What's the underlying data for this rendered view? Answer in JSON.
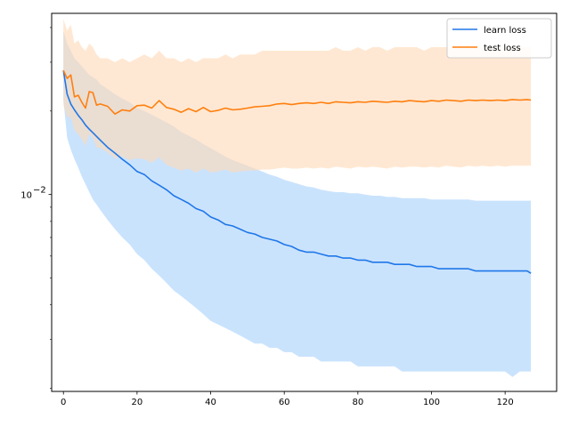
{
  "chart_data": {
    "type": "line",
    "title": "",
    "xlabel": "",
    "ylabel": "",
    "y_scale": "log",
    "xlim": [
      -3.2,
      134
    ],
    "ylim": [
      0.00195,
      0.045
    ],
    "grid": false,
    "legend_position": "top-right",
    "x_ticks": [
      0,
      20,
      40,
      60,
      80,
      100,
      120
    ],
    "y_major_ticks": [
      {
        "value": 0.01,
        "base": "10",
        "exp": "−2"
      }
    ],
    "y_minor_ticks": [
      0.002,
      0.003,
      0.004,
      0.005,
      0.006,
      0.007,
      0.008,
      0.009,
      0.02,
      0.03,
      0.04
    ],
    "series": [
      {
        "name": "learn loss",
        "color": "#1f77e8",
        "band_color": "#a9d2fb",
        "x": [
          0,
          1,
          2,
          3,
          4,
          5,
          6,
          7,
          8,
          9,
          10,
          12,
          14,
          16,
          18,
          20,
          22,
          24,
          26,
          28,
          30,
          32,
          34,
          36,
          38,
          40,
          42,
          44,
          46,
          48,
          50,
          52,
          54,
          56,
          58,
          60,
          62,
          64,
          66,
          68,
          70,
          72,
          74,
          76,
          78,
          80,
          82,
          84,
          86,
          88,
          90,
          92,
          94,
          96,
          98,
          100,
          102,
          104,
          106,
          108,
          110,
          112,
          114,
          116,
          118,
          120,
          122,
          124,
          126,
          127
        ],
        "mean": [
          0.028,
          0.023,
          0.0212,
          0.0202,
          0.0193,
          0.0186,
          0.0178,
          0.0172,
          0.0167,
          0.0162,
          0.0157,
          0.0148,
          0.0141,
          0.0134,
          0.0128,
          0.0121,
          0.0118,
          0.0112,
          0.0108,
          0.0104,
          0.0099,
          0.0096,
          0.0093,
          0.0089,
          0.0087,
          0.0083,
          0.0081,
          0.0078,
          0.0077,
          0.0075,
          0.0073,
          0.0072,
          0.007,
          0.0069,
          0.0068,
          0.0066,
          0.0065,
          0.0063,
          0.0062,
          0.0062,
          0.0061,
          0.006,
          0.006,
          0.0059,
          0.0059,
          0.0058,
          0.0058,
          0.0057,
          0.0057,
          0.0057,
          0.0056,
          0.0056,
          0.0056,
          0.0055,
          0.0055,
          0.0055,
          0.0054,
          0.0054,
          0.0054,
          0.0054,
          0.0054,
          0.0053,
          0.0053,
          0.0053,
          0.0053,
          0.0053,
          0.0053,
          0.0053,
          0.0053,
          0.0052
        ],
        "upper": [
          0.039,
          0.035,
          0.033,
          0.031,
          0.03,
          0.029,
          0.028,
          0.027,
          0.0265,
          0.026,
          0.025,
          0.024,
          0.023,
          0.0222,
          0.0215,
          0.0205,
          0.02,
          0.0194,
          0.0188,
          0.0182,
          0.0176,
          0.0168,
          0.0163,
          0.0158,
          0.0152,
          0.0147,
          0.0142,
          0.0137,
          0.0133,
          0.013,
          0.0127,
          0.0124,
          0.0121,
          0.0118,
          0.0116,
          0.0113,
          0.0111,
          0.0109,
          0.0107,
          0.0106,
          0.0104,
          0.0103,
          0.0102,
          0.0102,
          0.0101,
          0.0101,
          0.01,
          0.0099,
          0.0099,
          0.0098,
          0.0098,
          0.0097,
          0.0097,
          0.0097,
          0.0097,
          0.0096,
          0.0096,
          0.0096,
          0.0096,
          0.0096,
          0.0096,
          0.0095,
          0.0095,
          0.0095,
          0.0095,
          0.0095,
          0.0095,
          0.0095,
          0.0095,
          0.0095
        ],
        "lower": [
          0.022,
          0.016,
          0.0145,
          0.0134,
          0.0125,
          0.0116,
          0.0109,
          0.0102,
          0.0096,
          0.0092,
          0.0088,
          0.0081,
          0.0075,
          0.007,
          0.0066,
          0.0061,
          0.0058,
          0.0054,
          0.0051,
          0.0048,
          0.0045,
          0.0043,
          0.0041,
          0.0039,
          0.0037,
          0.0035,
          0.0034,
          0.0033,
          0.0032,
          0.0031,
          0.003,
          0.0029,
          0.0029,
          0.0028,
          0.0028,
          0.0027,
          0.0027,
          0.0026,
          0.0026,
          0.0026,
          0.0025,
          0.0025,
          0.0025,
          0.0025,
          0.0025,
          0.0024,
          0.0024,
          0.0024,
          0.0024,
          0.0024,
          0.0024,
          0.0023,
          0.0023,
          0.0023,
          0.0023,
          0.0023,
          0.0023,
          0.0023,
          0.0023,
          0.0023,
          0.0023,
          0.0023,
          0.0023,
          0.0023,
          0.0023,
          0.0023,
          0.0022,
          0.0023,
          0.0023,
          0.0023
        ]
      },
      {
        "name": "test loss",
        "color": "#ff7f0e",
        "band_color": "#ffd9b5",
        "x": [
          0,
          1,
          2,
          3,
          4,
          5,
          6,
          7,
          8,
          9,
          10,
          12,
          14,
          16,
          18,
          20,
          22,
          24,
          26,
          28,
          30,
          32,
          34,
          36,
          38,
          40,
          42,
          44,
          46,
          48,
          50,
          52,
          54,
          56,
          58,
          60,
          62,
          64,
          66,
          68,
          70,
          72,
          74,
          76,
          78,
          80,
          82,
          84,
          86,
          88,
          90,
          92,
          94,
          96,
          98,
          100,
          102,
          104,
          106,
          108,
          110,
          112,
          114,
          116,
          118,
          120,
          122,
          124,
          126,
          127
        ],
        "mean": [
          0.028,
          0.0262,
          0.027,
          0.0225,
          0.0228,
          0.0215,
          0.0205,
          0.0235,
          0.0233,
          0.021,
          0.0212,
          0.0208,
          0.0195,
          0.0202,
          0.02,
          0.0209,
          0.021,
          0.0205,
          0.0218,
          0.0206,
          0.0203,
          0.0198,
          0.0204,
          0.0199,
          0.0206,
          0.0199,
          0.0201,
          0.0205,
          0.0202,
          0.0203,
          0.0205,
          0.0207,
          0.0208,
          0.0209,
          0.0212,
          0.0213,
          0.0211,
          0.0213,
          0.0214,
          0.0213,
          0.0215,
          0.0213,
          0.0216,
          0.0215,
          0.0214,
          0.0216,
          0.0215,
          0.0217,
          0.0216,
          0.0215,
          0.0217,
          0.0216,
          0.0218,
          0.0217,
          0.0216,
          0.0218,
          0.0217,
          0.0219,
          0.0218,
          0.0217,
          0.0219,
          0.0218,
          0.0219,
          0.0218,
          0.0219,
          0.0218,
          0.022,
          0.0219,
          0.022,
          0.0219
        ],
        "upper": [
          0.043,
          0.039,
          0.041,
          0.035,
          0.036,
          0.034,
          0.033,
          0.035,
          0.034,
          0.032,
          0.031,
          0.031,
          0.03,
          0.031,
          0.03,
          0.031,
          0.032,
          0.031,
          0.033,
          0.031,
          0.031,
          0.03,
          0.031,
          0.03,
          0.031,
          0.031,
          0.031,
          0.032,
          0.031,
          0.032,
          0.032,
          0.032,
          0.033,
          0.033,
          0.033,
          0.033,
          0.033,
          0.033,
          0.033,
          0.033,
          0.033,
          0.033,
          0.034,
          0.033,
          0.033,
          0.034,
          0.033,
          0.034,
          0.034,
          0.033,
          0.034,
          0.034,
          0.034,
          0.034,
          0.033,
          0.034,
          0.034,
          0.034,
          0.034,
          0.034,
          0.034,
          0.034,
          0.034,
          0.034,
          0.034,
          0.034,
          0.034,
          0.034,
          0.034,
          0.034
        ],
        "lower": [
          0.021,
          0.019,
          0.019,
          0.017,
          0.0165,
          0.0158,
          0.015,
          0.0165,
          0.016,
          0.0148,
          0.0147,
          0.0142,
          0.0135,
          0.0137,
          0.0133,
          0.0135,
          0.0134,
          0.013,
          0.0136,
          0.0128,
          0.0125,
          0.0122,
          0.0124,
          0.012,
          0.0124,
          0.012,
          0.0121,
          0.0123,
          0.012,
          0.0121,
          0.0122,
          0.0122,
          0.0123,
          0.0123,
          0.0124,
          0.0125,
          0.0124,
          0.0124,
          0.0125,
          0.0124,
          0.0125,
          0.0124,
          0.0126,
          0.0125,
          0.0124,
          0.0126,
          0.0125,
          0.0126,
          0.0125,
          0.0124,
          0.0126,
          0.0125,
          0.0126,
          0.0126,
          0.0125,
          0.0126,
          0.0125,
          0.0127,
          0.0126,
          0.0125,
          0.0127,
          0.0126,
          0.0127,
          0.0126,
          0.0127,
          0.0126,
          0.0127,
          0.0127,
          0.0127,
          0.0127
        ]
      }
    ]
  }
}
